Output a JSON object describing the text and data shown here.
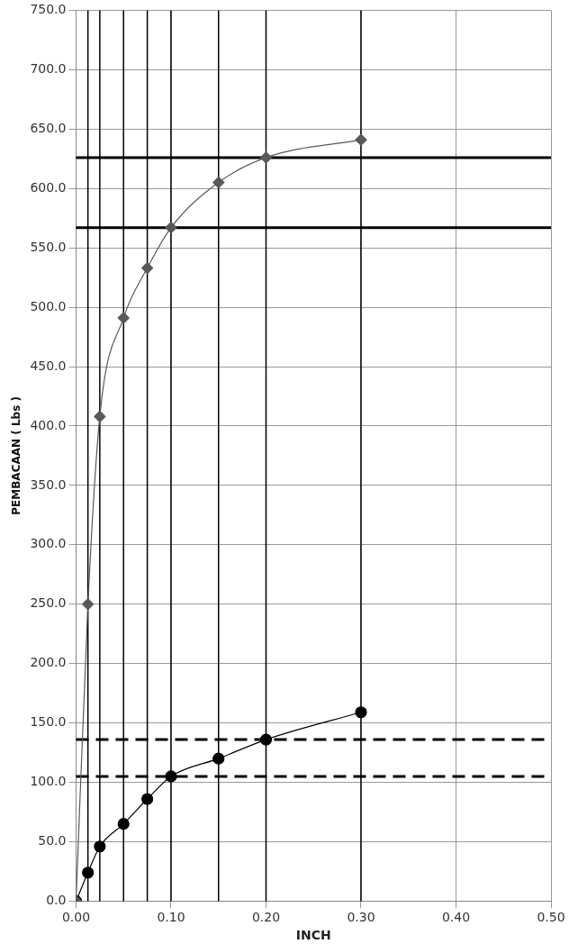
{
  "chart_data": {
    "type": "line",
    "xlabel": "INCH",
    "ylabel": "PEMBACAAN ( Lbs )",
    "x": [
      0,
      0.0125,
      0.025,
      0.05,
      0.075,
      0.1,
      0.15,
      0.2,
      0.3
    ],
    "series": [
      {
        "color": "#595959",
        "marker": "diamond",
        "values": [
          0,
          250,
          408,
          491,
          533,
          567,
          605,
          626,
          641
        ]
      },
      {
        "color": "#000000",
        "marker": "circle",
        "values": [
          0,
          24,
          46,
          65,
          86,
          105,
          120,
          136,
          159
        ]
      }
    ],
    "xlim": [
      0,
      0.5
    ],
    "ylim": [
      0,
      750
    ],
    "xticks": [
      {
        "value": 0,
        "label": "0.00"
      },
      {
        "value": 0.1,
        "label": "0.10"
      },
      {
        "value": 0.2,
        "label": "0.20"
      },
      {
        "value": 0.3,
        "label": "0.30"
      },
      {
        "value": 0.4,
        "label": "0.40"
      },
      {
        "value": 0.5,
        "label": "0.50"
      }
    ],
    "yticks": [
      {
        "value": 0,
        "label": "0.0"
      },
      {
        "value": 50,
        "label": "50.0"
      },
      {
        "value": 100,
        "label": "100.0"
      },
      {
        "value": 150,
        "label": "150.0"
      },
      {
        "value": 200,
        "label": "200.0"
      },
      {
        "value": 250,
        "label": "250.0"
      },
      {
        "value": 300,
        "label": "300.0"
      },
      {
        "value": 350,
        "label": "350.0"
      },
      {
        "value": 400,
        "label": "400.0"
      },
      {
        "value": 450,
        "label": "450.0"
      },
      {
        "value": 500,
        "label": "500.0"
      },
      {
        "value": 550,
        "label": "550.0"
      },
      {
        "value": 600,
        "label": "600.0"
      },
      {
        "value": 650,
        "label": "650.0"
      },
      {
        "value": 700,
        "label": "700.0"
      },
      {
        "value": 750,
        "label": "750.0"
      }
    ],
    "grid": true,
    "legend": false,
    "ref_lines": [
      {
        "axis": "y",
        "value": 626,
        "color": "#000000"
      },
      {
        "axis": "y",
        "value": 567,
        "color": "#000000"
      },
      {
        "axis": "y",
        "value": 136,
        "color": "#000000",
        "line_style": "dashed"
      },
      {
        "axis": "y",
        "value": 105,
        "color": "#000000",
        "line_style": "dashed"
      },
      {
        "axis": "x",
        "value": 0.0125,
        "color": "#000000"
      },
      {
        "axis": "x",
        "value": 0.025,
        "color": "#000000"
      },
      {
        "axis": "x",
        "value": 0.05,
        "color": "#000000"
      },
      {
        "axis": "x",
        "value": 0.075,
        "color": "#000000"
      },
      {
        "axis": "x",
        "value": 0.1,
        "color": "#000000"
      },
      {
        "axis": "x",
        "value": 0.15,
        "color": "#000000"
      },
      {
        "axis": "x",
        "value": 0.2,
        "color": "#000000"
      },
      {
        "axis": "x",
        "value": 0.3,
        "color": "#000000"
      }
    ]
  }
}
